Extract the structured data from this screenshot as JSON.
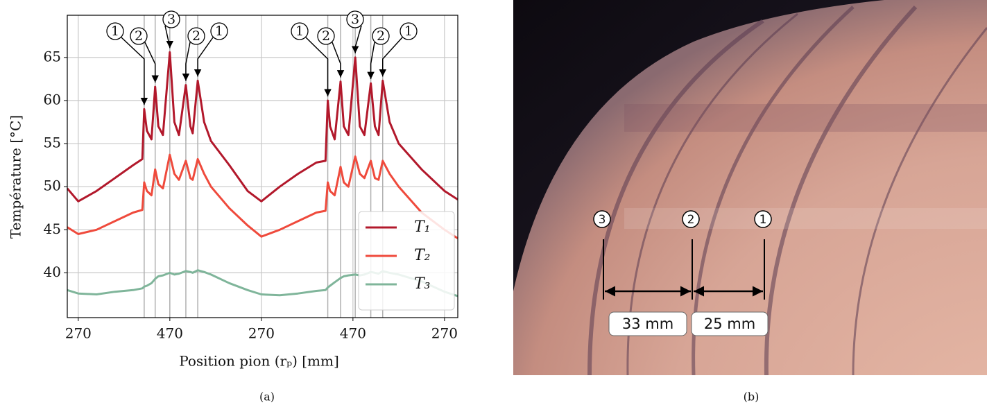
{
  "chart_data": {
    "type": "line",
    "x_label": "Position pion (rₚ) [mm]",
    "y_label": "Température [°C]",
    "x": [
      -24,
      0,
      40,
      80,
      120,
      140,
      144,
      150,
      160,
      168,
      175,
      185,
      200,
      210,
      220,
      235,
      245,
      250,
      261,
      275,
      290,
      330,
      370,
      400,
      440,
      480,
      520,
      540,
      545,
      550,
      560,
      573,
      580,
      590,
      605,
      615,
      625,
      639,
      648,
      656,
      665,
      680,
      700,
      750,
      800,
      829
    ],
    "series": [
      {
        "name": "T₁",
        "color": "#b2182b",
        "values": [
          49.8,
          48.3,
          49.5,
          51,
          52.5,
          53.2,
          59,
          56.5,
          55.5,
          61.6,
          57,
          56,
          65.6,
          57.5,
          56,
          61.8,
          57,
          56.2,
          62.3,
          57.5,
          55.3,
          52.5,
          49.5,
          48.3,
          50,
          51.5,
          52.8,
          53,
          60,
          57,
          55.5,
          62.2,
          57,
          56,
          65,
          57,
          56,
          62,
          57,
          56,
          62.3,
          57.5,
          55,
          52,
          49.5,
          48.5
        ]
      },
      {
        "name": "T₂",
        "color": "#ef4a3c",
        "values": [
          45.3,
          44.5,
          45,
          46,
          47,
          47.3,
          50.5,
          49.5,
          49,
          52,
          50.3,
          49.8,
          53.7,
          51.5,
          50.8,
          53,
          51,
          50.8,
          53.2,
          51.5,
          50,
          47.5,
          45.5,
          44.2,
          45,
          46,
          47,
          47.2,
          50.5,
          49.5,
          49,
          52.3,
          50.5,
          50,
          53.5,
          51.5,
          51,
          53,
          51,
          50.8,
          53,
          51.5,
          50,
          47,
          45,
          44
        ]
      },
      {
        "name": "T₃",
        "color": "#7fb59a",
        "values": [
          38,
          37.6,
          37.5,
          37.8,
          38,
          38.2,
          38.4,
          38.5,
          38.8,
          39.3,
          39.6,
          39.7,
          40,
          39.8,
          39.9,
          40.2,
          40.1,
          40,
          40.3,
          40.1,
          39.8,
          38.8,
          38,
          37.5,
          37.4,
          37.6,
          37.9,
          38,
          38.3,
          38.5,
          38.9,
          39.4,
          39.6,
          39.7,
          39.8,
          39.7,
          39.8,
          40.1,
          40,
          39.9,
          40.2,
          40,
          39.8,
          39,
          37.8,
          37.3
        ]
      }
    ],
    "xlim": [
      -24,
      829
    ],
    "xticks": [
      {
        "value": 0,
        "label": "270"
      },
      {
        "value": 200,
        "label": "470"
      },
      {
        "value": 400,
        "label": "270"
      },
      {
        "value": 600,
        "label": "470"
      },
      {
        "value": 800,
        "label": "270"
      }
    ],
    "ylim": [
      34.8,
      69.9
    ],
    "yticks": [
      40,
      45,
      50,
      55,
      60,
      65
    ],
    "grid": true,
    "legend": "lower right",
    "annotations": [
      {
        "label": "1",
        "x": 144
      },
      {
        "label": "2",
        "x": 168
      },
      {
        "label": "3",
        "x": 200
      },
      {
        "label": "2",
        "x": 235
      },
      {
        "label": "1",
        "x": 261
      },
      {
        "label": "1",
        "x": 545
      },
      {
        "label": "2",
        "x": 573
      },
      {
        "label": "3",
        "x": 605
      },
      {
        "label": "2",
        "x": 639
      },
      {
        "label": "1",
        "x": 665
      }
    ]
  },
  "photo": {
    "markers": [
      "3",
      "2",
      "1"
    ],
    "measurements": [
      "33 mm",
      "25 mm"
    ]
  },
  "panel_labels": [
    "(a)",
    "(b)"
  ]
}
